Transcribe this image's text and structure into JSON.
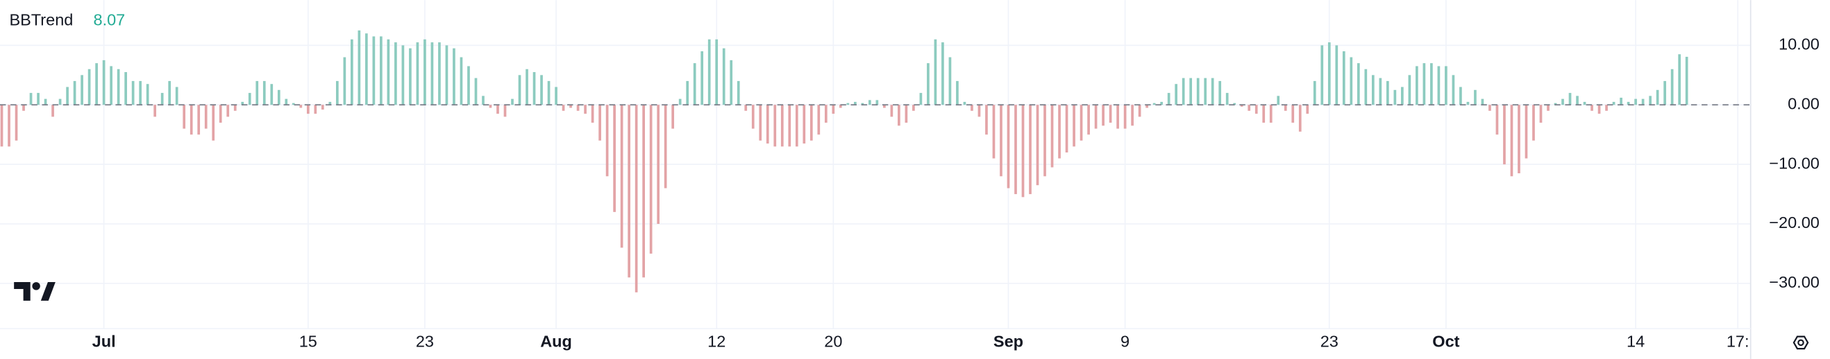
{
  "chart_data": {
    "type": "bar",
    "title": "BBTrend",
    "categories": [
      null,
      null,
      null,
      null,
      null,
      null,
      null,
      null,
      null,
      null,
      null,
      null,
      null,
      null,
      "Jul",
      null,
      null,
      null,
      null,
      null,
      null,
      null,
      null,
      null,
      null,
      null,
      null,
      null,
      null,
      null,
      null,
      null,
      null,
      null,
      null,
      null,
      null,
      null,
      null,
      null,
      null,
      null,
      "15",
      null,
      null,
      null,
      null,
      null,
      null,
      null,
      null,
      null,
      null,
      null,
      null,
      null,
      null,
      null,
      "23",
      null,
      null,
      null,
      null,
      null,
      null,
      null,
      null,
      null,
      null,
      null,
      null,
      null,
      null,
      null,
      null,
      null,
      "Aug",
      null,
      null,
      null,
      null,
      null,
      null,
      null,
      null,
      null,
      null,
      null,
      null,
      null,
      null,
      null,
      null,
      null,
      null,
      null,
      null,
      null,
      "12",
      null,
      null,
      null,
      null,
      null,
      null,
      null,
      null,
      null,
      null,
      null,
      null,
      null,
      null,
      null,
      "20",
      null,
      null,
      null,
      null,
      null,
      null,
      null,
      null,
      null,
      null,
      null,
      null,
      null,
      null,
      null,
      null,
      null,
      null,
      null,
      null,
      null,
      null,
      null,
      "Sep",
      null,
      null,
      null,
      null,
      null,
      null,
      null,
      null,
      null,
      null,
      null,
      null,
      null,
      null,
      null,
      "9",
      null,
      null,
      null,
      null,
      null,
      null,
      null,
      null,
      null,
      null,
      null,
      null,
      null,
      null,
      null,
      null,
      null,
      null,
      null,
      null,
      null,
      null,
      null,
      null,
      null,
      null,
      null,
      "23",
      null,
      null,
      null,
      null,
      null,
      null,
      null,
      null,
      null,
      null,
      null,
      null,
      null,
      null,
      null,
      "Oct",
      null,
      null,
      null,
      null,
      null,
      null,
      null,
      null,
      null,
      null,
      null,
      null,
      null,
      null,
      null,
      null,
      null,
      null,
      null,
      null,
      null,
      null,
      null,
      null,
      null,
      "14",
      null,
      null,
      null,
      null,
      null,
      null,
      null,
      null,
      null,
      null,
      null,
      null,
      null,
      "17:",
      null
    ],
    "values": [
      -7,
      -7,
      -6,
      -1,
      2,
      2,
      1,
      -2,
      1,
      3,
      4,
      5,
      6,
      7,
      7.5,
      6.5,
      6,
      5.5,
      4,
      4,
      3.5,
      -2,
      2,
      4,
      3,
      -4,
      -5,
      -5,
      -4,
      -6,
      -3,
      -2,
      -1,
      0.5,
      2,
      4,
      4,
      3.5,
      2.5,
      1,
      0.3,
      -0.5,
      -1.5,
      -1.5,
      -0.8,
      0.5,
      4,
      8,
      11,
      12.5,
      12,
      11.5,
      11.5,
      11,
      10.5,
      10,
      9.5,
      10.5,
      11,
      10.5,
      10.5,
      10,
      9.5,
      8,
      6.5,
      4.5,
      1.5,
      -0.5,
      -1.5,
      -2,
      1,
      5,
      6,
      5.5,
      5,
      4,
      3,
      -1,
      -0.5,
      -1,
      -1.5,
      -3,
      -6,
      -12,
      -18,
      -24,
      -29,
      -31.5,
      -29,
      -25,
      -20,
      -14,
      -4,
      1,
      4,
      7,
      9,
      11,
      11,
      9.5,
      7.5,
      4,
      -1,
      -4,
      -6,
      -6.5,
      -7,
      -7,
      -7,
      -7,
      -6.5,
      -6,
      -5,
      -3,
      -1.5,
      -0.5,
      0.3,
      0.5,
      0.3,
      0.8,
      0.8,
      -0.5,
      -2,
      -3.5,
      -3,
      -1,
      2,
      7,
      11,
      10.5,
      8,
      4,
      0.5,
      -1,
      -2,
      -5,
      -9,
      -12,
      -14,
      -15,
      -15.5,
      -15,
      -13.5,
      -12,
      -10.5,
      -9,
      -8,
      -7,
      -6,
      -5,
      -4,
      -3.5,
      -3,
      -4,
      -4,
      -3.5,
      -2,
      -0.5,
      0.3,
      0.5,
      2,
      3.5,
      4.5,
      4.5,
      4.5,
      4.5,
      4.5,
      4,
      2,
      0.3,
      -0.3,
      -1,
      -1.5,
      -3,
      -3,
      1.5,
      -1,
      -3,
      -4.5,
      -1.5,
      4,
      10,
      10.5,
      10,
      9,
      8,
      7,
      6,
      5,
      4.5,
      4,
      2.5,
      3,
      5,
      6.5,
      7,
      7,
      6.5,
      6.5,
      5,
      3,
      0.5,
      2.5,
      1,
      -1,
      -5,
      -10,
      -12,
      -11.5,
      -9,
      -6,
      -3,
      -1,
      0.3,
      1,
      2,
      1.5,
      0.5,
      -1,
      -1.5,
      -1,
      0.5,
      1.2,
      0.5,
      1,
      1,
      1.5,
      2.5,
      4,
      6,
      8.5,
      8.07,
      null,
      null,
      null,
      null,
      null,
      null,
      null,
      null
    ],
    "colors": {
      "positive": "#8ccbbf",
      "negative": "#e3a3a6",
      "last_value": "#22ab94"
    },
    "ylim": [
      -37.6,
      17.6
    ],
    "yticks": [
      {
        "value": 10,
        "label": "10.00"
      },
      {
        "value": 0,
        "label": "0.00"
      },
      {
        "value": -10,
        "label": "−10.00"
      },
      {
        "value": -20,
        "label": "−20.00"
      },
      {
        "value": -30,
        "label": "−30.00"
      }
    ],
    "grid": true,
    "zero_line": true
  }
}
